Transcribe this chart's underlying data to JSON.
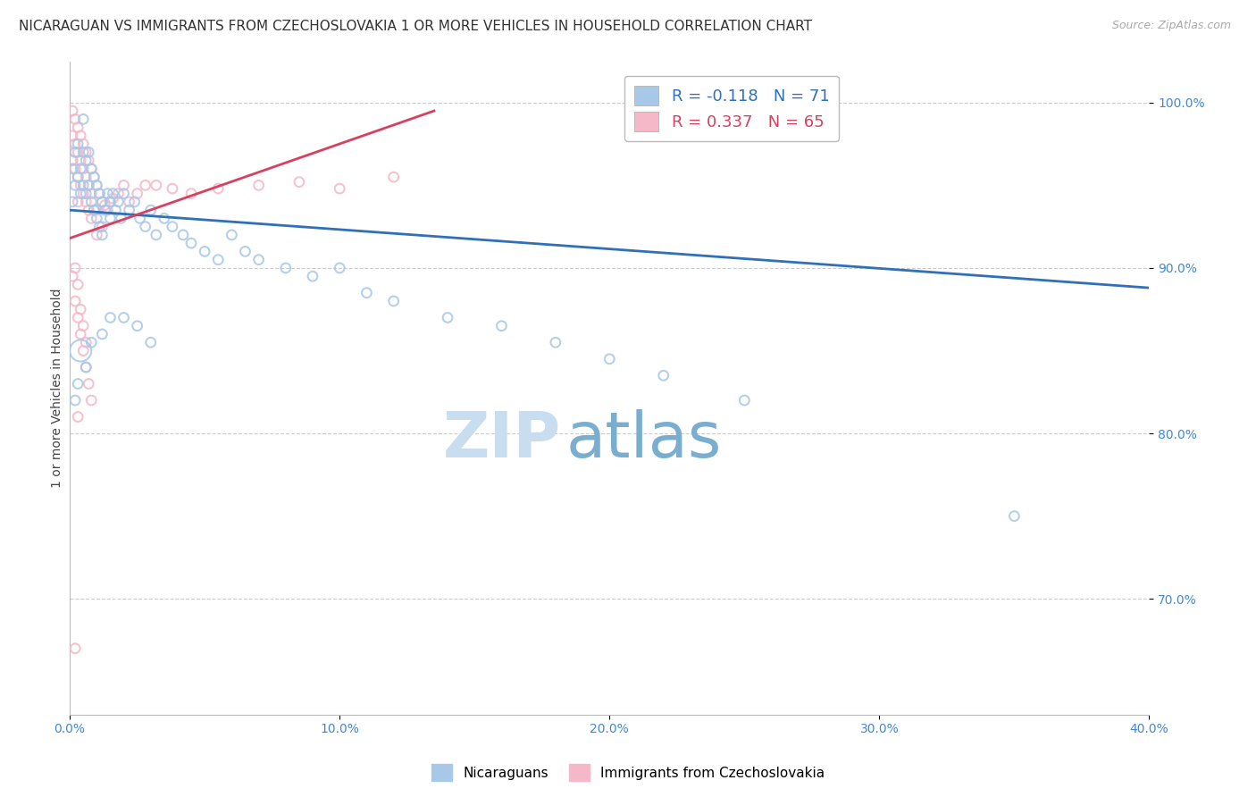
{
  "title": "NICARAGUAN VS IMMIGRANTS FROM CZECHOSLOVAKIA 1 OR MORE VEHICLES IN HOUSEHOLD CORRELATION CHART",
  "source": "Source: ZipAtlas.com",
  "ylabel": "1 or more Vehicles in Household",
  "xlim": [
    0.0,
    0.4
  ],
  "ylim": [
    0.63,
    1.025
  ],
  "yticks": [
    0.7,
    0.8,
    0.9,
    1.0
  ],
  "ytick_labels": [
    "70.0%",
    "80.0%",
    "90.0%",
    "100.0%"
  ],
  "xticks": [
    0.0,
    0.1,
    0.2,
    0.3,
    0.4
  ],
  "xtick_labels": [
    "0.0%",
    "10.0%",
    "20.0%",
    "30.0%",
    "40.0%"
  ],
  "blue_color": "#a8c8e8",
  "pink_color": "#f4b8c8",
  "blue_line_color": "#3070b8",
  "pink_line_color": "#d84060",
  "background_color": "#ffffff",
  "legend_blue_R": "-0.118",
  "legend_blue_N": "71",
  "legend_pink_R": "0.337",
  "legend_pink_N": "65",
  "label_blue": "Nicaraguans",
  "label_pink": "Immigrants from Czechoslovakia",
  "watermark_zip": "ZIP",
  "watermark_atlas": "atlas",
  "blue_scatter_x": [
    0.001,
    0.001,
    0.002,
    0.002,
    0.003,
    0.003,
    0.004,
    0.004,
    0.005,
    0.005,
    0.005,
    0.006,
    0.006,
    0.007,
    0.007,
    0.008,
    0.008,
    0.009,
    0.009,
    0.01,
    0.01,
    0.011,
    0.011,
    0.012,
    0.012,
    0.013,
    0.014,
    0.015,
    0.015,
    0.016,
    0.017,
    0.018,
    0.019,
    0.02,
    0.022,
    0.024,
    0.026,
    0.028,
    0.03,
    0.032,
    0.035,
    0.038,
    0.042,
    0.045,
    0.05,
    0.055,
    0.06,
    0.065,
    0.07,
    0.08,
    0.09,
    0.1,
    0.11,
    0.12,
    0.14,
    0.16,
    0.18,
    0.2,
    0.22,
    0.25,
    0.02,
    0.025,
    0.03,
    0.015,
    0.012,
    0.008,
    0.006,
    0.004,
    0.35,
    0.003,
    0.002
  ],
  "blue_scatter_y": [
    0.96,
    0.94,
    0.97,
    0.95,
    0.975,
    0.955,
    0.96,
    0.945,
    0.99,
    0.97,
    0.95,
    0.965,
    0.945,
    0.97,
    0.95,
    0.96,
    0.94,
    0.955,
    0.935,
    0.95,
    0.93,
    0.945,
    0.925,
    0.94,
    0.92,
    0.935,
    0.945,
    0.94,
    0.93,
    0.945,
    0.935,
    0.94,
    0.93,
    0.945,
    0.935,
    0.94,
    0.93,
    0.925,
    0.935,
    0.92,
    0.93,
    0.925,
    0.92,
    0.915,
    0.91,
    0.905,
    0.92,
    0.91,
    0.905,
    0.9,
    0.895,
    0.9,
    0.885,
    0.88,
    0.87,
    0.865,
    0.855,
    0.845,
    0.835,
    0.82,
    0.87,
    0.865,
    0.855,
    0.87,
    0.86,
    0.855,
    0.84,
    0.85,
    0.75,
    0.83,
    0.82
  ],
  "blue_scatter_sizes": [
    60,
    60,
    60,
    60,
    60,
    60,
    60,
    60,
    60,
    60,
    60,
    60,
    60,
    60,
    60,
    60,
    60,
    60,
    60,
    60,
    60,
    60,
    60,
    60,
    60,
    60,
    60,
    60,
    60,
    60,
    60,
    60,
    60,
    60,
    60,
    60,
    60,
    60,
    60,
    60,
    60,
    60,
    60,
    60,
    60,
    60,
    60,
    60,
    60,
    60,
    60,
    60,
    60,
    60,
    60,
    60,
    60,
    60,
    60,
    60,
    60,
    60,
    60,
    60,
    60,
    60,
    60,
    300,
    60,
    60,
    60
  ],
  "pink_scatter_x": [
    0.001,
    0.001,
    0.001,
    0.002,
    0.002,
    0.002,
    0.003,
    0.003,
    0.003,
    0.003,
    0.004,
    0.004,
    0.004,
    0.005,
    0.005,
    0.005,
    0.006,
    0.006,
    0.006,
    0.007,
    0.007,
    0.007,
    0.008,
    0.008,
    0.008,
    0.009,
    0.009,
    0.01,
    0.01,
    0.01,
    0.011,
    0.012,
    0.012,
    0.013,
    0.014,
    0.015,
    0.016,
    0.018,
    0.02,
    0.022,
    0.025,
    0.028,
    0.032,
    0.038,
    0.045,
    0.055,
    0.07,
    0.085,
    0.1,
    0.12,
    0.001,
    0.002,
    0.003,
    0.004,
    0.005,
    0.006,
    0.007,
    0.008,
    0.002,
    0.003,
    0.004,
    0.005,
    0.006,
    0.003,
    0.002
  ],
  "pink_scatter_y": [
    0.995,
    0.98,
    0.965,
    0.99,
    0.975,
    0.96,
    0.985,
    0.97,
    0.955,
    0.94,
    0.98,
    0.965,
    0.95,
    0.975,
    0.96,
    0.945,
    0.97,
    0.955,
    0.94,
    0.965,
    0.95,
    0.935,
    0.96,
    0.945,
    0.93,
    0.955,
    0.935,
    0.95,
    0.935,
    0.92,
    0.945,
    0.94,
    0.925,
    0.938,
    0.935,
    0.94,
    0.942,
    0.945,
    0.95,
    0.94,
    0.945,
    0.95,
    0.95,
    0.948,
    0.945,
    0.948,
    0.95,
    0.952,
    0.948,
    0.955,
    0.895,
    0.88,
    0.87,
    0.86,
    0.85,
    0.84,
    0.83,
    0.82,
    0.9,
    0.89,
    0.875,
    0.865,
    0.855,
    0.81,
    0.67
  ],
  "pink_scatter_sizes": [
    60,
    60,
    60,
    60,
    60,
    60,
    60,
    60,
    60,
    60,
    60,
    60,
    60,
    60,
    60,
    60,
    60,
    60,
    60,
    60,
    60,
    60,
    60,
    60,
    60,
    60,
    60,
    60,
    60,
    60,
    60,
    60,
    60,
    60,
    60,
    60,
    60,
    60,
    60,
    60,
    60,
    60,
    60,
    60,
    60,
    60,
    60,
    60,
    60,
    60,
    60,
    60,
    60,
    60,
    60,
    60,
    60,
    60,
    60,
    60,
    60,
    60,
    60,
    60,
    60
  ],
  "blue_trend_x": [
    0.0,
    0.4
  ],
  "blue_trend_y": [
    0.935,
    0.888
  ],
  "pink_trend_x": [
    0.0,
    0.135
  ],
  "pink_trend_y": [
    0.918,
    0.995
  ],
  "title_fontsize": 11,
  "axis_label_fontsize": 10,
  "tick_fontsize": 10,
  "legend_fontsize": 13,
  "watermark_fontsize_zip": 52,
  "watermark_fontsize_atlas": 52,
  "watermark_color": "#d8eaf8",
  "grid_color": "#cccccc",
  "tick_color": "#4488cc"
}
